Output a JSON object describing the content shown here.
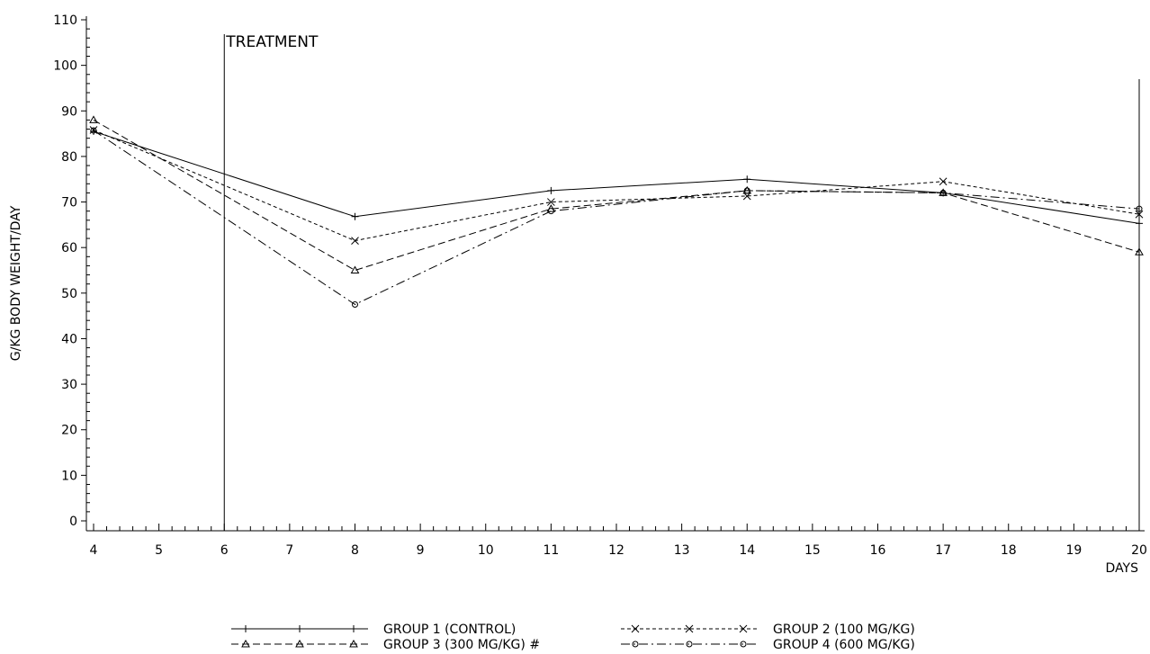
{
  "chart_data": {
    "type": "line",
    "xlabel": "DAYS",
    "ylabel": "G/KG BODY WEIGHT/DAY",
    "xlim": [
      4,
      20
    ],
    "ylim": [
      0,
      110
    ],
    "x_ticks": [
      4,
      5,
      6,
      7,
      8,
      9,
      10,
      11,
      12,
      13,
      14,
      15,
      16,
      17,
      18,
      19,
      20
    ],
    "y_ticks": [
      0,
      10,
      20,
      30,
      40,
      50,
      60,
      70,
      80,
      90,
      100,
      110
    ],
    "grid": false,
    "legend_position": "bottom",
    "annotations": [
      {
        "text": "TREATMENT",
        "x": 6
      }
    ],
    "series": [
      {
        "name": "GROUP 1 (CONTROL)",
        "marker": "plus",
        "dash": "solid",
        "x": [
          4,
          8,
          11,
          14,
          17,
          20
        ],
        "y": [
          85.5,
          66.8,
          72.5,
          75.0,
          72.0,
          65.3
        ]
      },
      {
        "name": "GROUP 2 (100 MG/KG)",
        "marker": "x",
        "dash": "dotted",
        "x": [
          4,
          8,
          11,
          14,
          17,
          20
        ],
        "y": [
          85.8,
          61.5,
          70.0,
          71.3,
          74.5,
          67.3
        ]
      },
      {
        "name": "GROUP 3 (300 MG/KG) #",
        "marker": "triangle",
        "dash": "dashed",
        "x": [
          4,
          8,
          11,
          14,
          17,
          20
        ],
        "y": [
          88.0,
          55.0,
          68.5,
          72.5,
          72.0,
          59.0
        ]
      },
      {
        "name": "GROUP 4 (600 MG/KG)",
        "marker": "circle",
        "dash": "dashdot",
        "x": [
          4,
          8,
          11,
          14,
          17,
          20
        ],
        "y": [
          85.7,
          47.5,
          68.0,
          72.5,
          72.0,
          68.5
        ]
      }
    ]
  }
}
